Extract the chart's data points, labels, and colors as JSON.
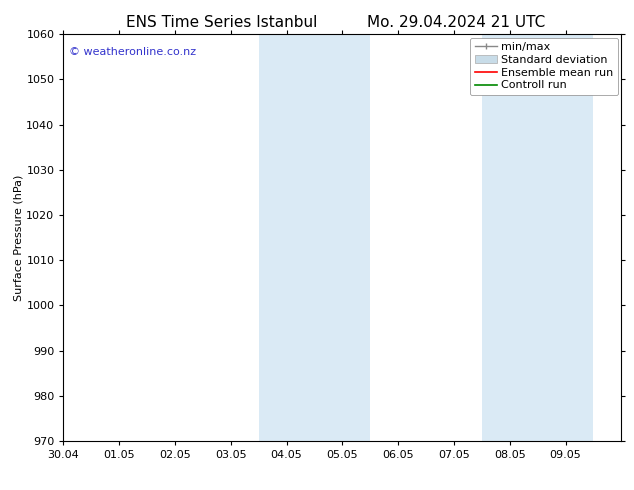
{
  "title_left": "ENS Time Series Istanbul",
  "title_right": "Mo. 29.04.2024 21 UTC",
  "ylabel": "Surface Pressure (hPa)",
  "xlim": [
    0,
    10
  ],
  "ylim": [
    970,
    1060
  ],
  "yticks": [
    970,
    980,
    990,
    1000,
    1010,
    1020,
    1030,
    1040,
    1050,
    1060
  ],
  "xtick_labels": [
    "30.04",
    "01.05",
    "02.05",
    "03.05",
    "04.05",
    "05.05",
    "06.05",
    "07.05",
    "08.05",
    "09.05"
  ],
  "xtick_positions": [
    0,
    1,
    2,
    3,
    4,
    5,
    6,
    7,
    8,
    9
  ],
  "shaded_bands": [
    {
      "x_start": 3.5,
      "x_end": 4.5
    },
    {
      "x_start": 4.5,
      "x_end": 5.5
    },
    {
      "x_start": 7.5,
      "x_end": 8.5
    },
    {
      "x_start": 8.5,
      "x_end": 9.5
    }
  ],
  "shaded_color": "#daeaf5",
  "background_color": "#ffffff",
  "watermark_text": "© weatheronline.co.nz",
  "watermark_color": "#3333cc",
  "legend_labels": [
    "min/max",
    "Standard deviation",
    "Ensemble mean run",
    "Controll run"
  ],
  "minmax_color": "#888888",
  "std_color": "#c8dce8",
  "ensemble_color": "#ff0000",
  "control_color": "#008800",
  "title_fontsize": 11,
  "axis_label_fontsize": 8,
  "tick_fontsize": 8,
  "watermark_fontsize": 8,
  "legend_fontsize": 8
}
